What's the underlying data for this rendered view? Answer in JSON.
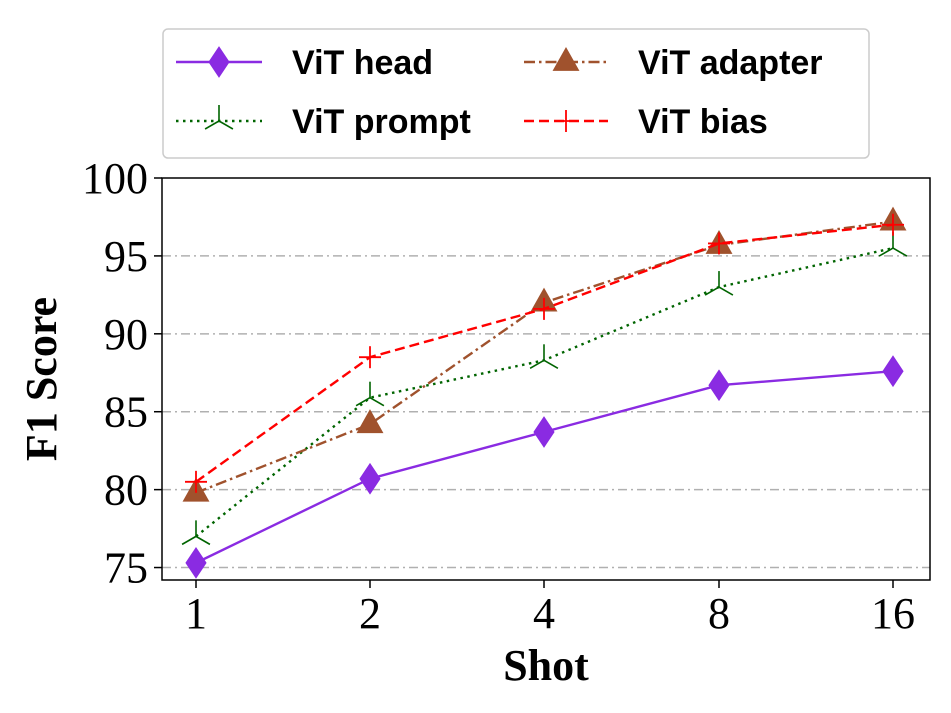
{
  "chart_data": {
    "type": "line",
    "title": "",
    "xlabel": "Shot",
    "ylabel": "F1 Score",
    "categories": [
      "1",
      "2",
      "4",
      "8",
      "16"
    ],
    "ylim": [
      74.2,
      100
    ],
    "yticks": [
      75,
      80,
      85,
      90,
      95,
      100
    ],
    "grid": {
      "y": true,
      "x": false,
      "style": "dash-dot"
    },
    "legend_position": "top",
    "series": [
      {
        "name": "ViT head",
        "color": "#8a2be2",
        "linestyle": "solid",
        "marker": "thin-diamond",
        "values": [
          75.3,
          80.7,
          83.7,
          86.7,
          87.6
        ]
      },
      {
        "name": "ViT prompt",
        "color": "#006400",
        "linestyle": "dotted",
        "marker": "tri-down",
        "values": [
          77.0,
          85.9,
          88.3,
          93.0,
          95.5
        ]
      },
      {
        "name": "ViT adapter",
        "color": "#a0522d",
        "linestyle": "dash-dot",
        "marker": "triangle-up",
        "values": [
          79.8,
          84.2,
          92.0,
          95.7,
          97.2
        ]
      },
      {
        "name": "ViT bias",
        "color": "#ff0000",
        "linestyle": "dashed",
        "marker": "plus",
        "values": [
          80.5,
          88.5,
          91.6,
          95.8,
          97.0
        ]
      }
    ]
  }
}
